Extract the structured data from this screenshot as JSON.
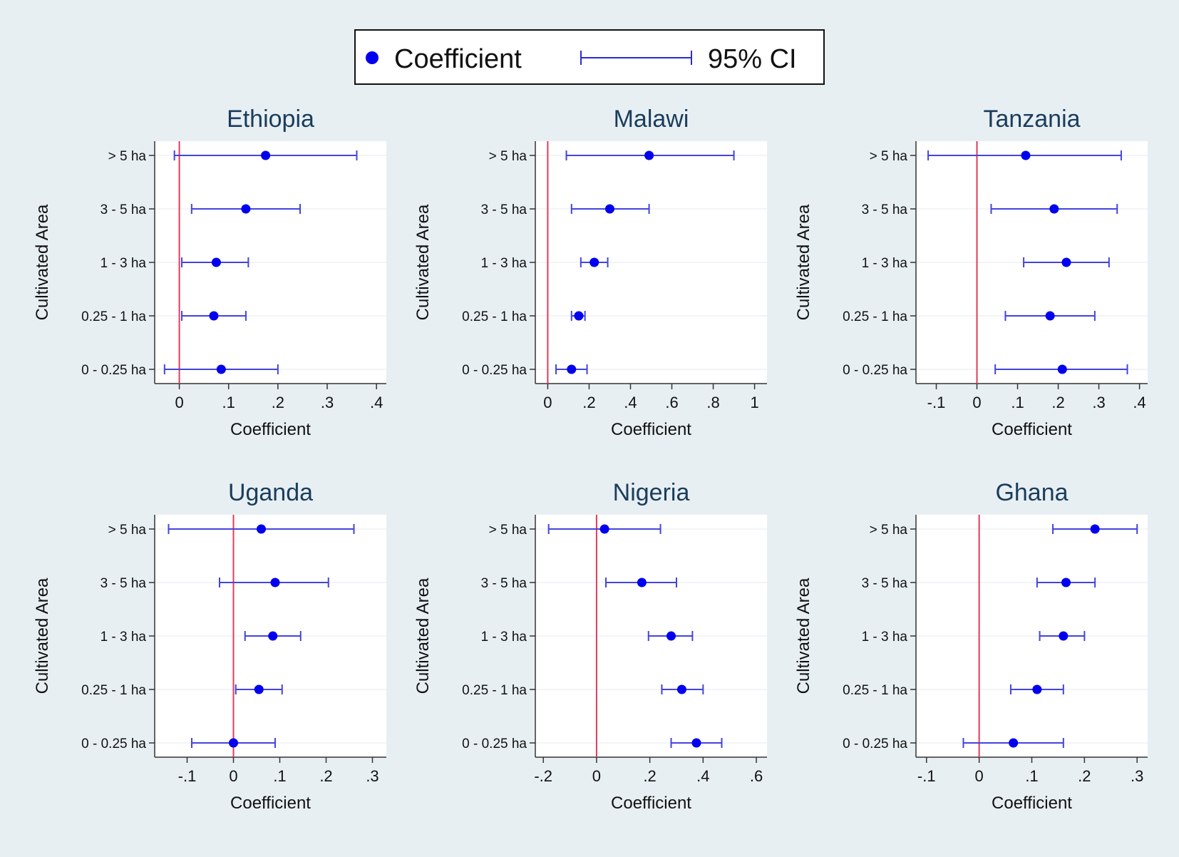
{
  "legend": {
    "coefficient_label": "Coefficient",
    "ci_label": "95% CI",
    "marker_color": "#0000ee",
    "ci_color": "#2b2bd6"
  },
  "colors": {
    "zero_line": "#e23b5a",
    "marker": "#0000ee",
    "ci": "#4444dd"
  },
  "chart_data": [
    {
      "type": "scatter",
      "title": "Ethiopia",
      "xlabel": "Coefficient",
      "ylabel": "Cultivated Area",
      "categories": [
        "> 5 ha",
        "3 - 5 ha",
        "1 - 3 ha",
        "0.25 - 1 ha",
        "0 - 0.25 ha"
      ],
      "series": [
        {
          "values": [
            0.175,
            0.135,
            0.075,
            0.07,
            0.085
          ],
          "ci_low": [
            -0.01,
            0.025,
            0.005,
            0.005,
            -0.03
          ],
          "ci_high": [
            0.36,
            0.245,
            0.14,
            0.135,
            0.2
          ]
        }
      ],
      "xlim": [
        -0.05,
        0.42
      ],
      "xticks": [
        0,
        0.1,
        0.2,
        0.3,
        0.4
      ],
      "xticklabels": [
        "0",
        ".1",
        ".2",
        ".3",
        ".4"
      ],
      "reference_x": 0
    },
    {
      "type": "scatter",
      "title": "Malawi",
      "xlabel": "Coefficient",
      "ylabel": "Cultivated Area",
      "categories": [
        "> 5 ha",
        "3 - 5 ha",
        "1 - 3 ha",
        "0.25 - 1 ha",
        "0 - 0.25 ha"
      ],
      "series": [
        {
          "values": [
            0.49,
            0.3,
            0.225,
            0.15,
            0.115
          ],
          "ci_low": [
            0.09,
            0.115,
            0.16,
            0.115,
            0.04
          ],
          "ci_high": [
            0.9,
            0.49,
            0.29,
            0.18,
            0.19
          ]
        }
      ],
      "xlim": [
        -0.06,
        1.06
      ],
      "xticks": [
        0,
        0.2,
        0.4,
        0.6,
        0.8,
        1
      ],
      "xticklabels": [
        "0",
        ".2",
        ".4",
        ".6",
        ".8",
        "1"
      ],
      "reference_x": 0
    },
    {
      "type": "scatter",
      "title": "Tanzania",
      "xlabel": "Coefficient",
      "ylabel": "Cultivated Area",
      "categories": [
        "> 5 ha",
        "3 - 5 ha",
        "1 - 3 ha",
        "0.25 - 1 ha",
        "0 - 0.25 ha"
      ],
      "series": [
        {
          "values": [
            0.12,
            0.19,
            0.22,
            0.18,
            0.21
          ],
          "ci_low": [
            -0.12,
            0.035,
            0.115,
            0.07,
            0.045
          ],
          "ci_high": [
            0.355,
            0.345,
            0.325,
            0.29,
            0.37
          ]
        }
      ],
      "xlim": [
        -0.15,
        0.42
      ],
      "xticks": [
        -0.1,
        0,
        0.1,
        0.2,
        0.3,
        0.4
      ],
      "xticklabels": [
        "-.1",
        "0",
        ".1",
        ".2",
        ".3",
        ".4"
      ],
      "reference_x": 0
    },
    {
      "type": "scatter",
      "title": "Uganda",
      "xlabel": "Coefficient",
      "ylabel": "Cultivated Area",
      "categories": [
        "> 5 ha",
        "3 - 5 ha",
        "1 - 3 ha",
        "0.25 - 1 ha",
        "0 - 0.25 ha"
      ],
      "series": [
        {
          "values": [
            0.06,
            0.09,
            0.085,
            0.055,
            0.0
          ],
          "ci_low": [
            -0.14,
            -0.03,
            0.025,
            0.005,
            -0.09
          ],
          "ci_high": [
            0.26,
            0.205,
            0.145,
            0.105,
            0.09
          ]
        }
      ],
      "xlim": [
        -0.17,
        0.33
      ],
      "xticks": [
        -0.1,
        0,
        0.1,
        0.2,
        0.3
      ],
      "xticklabels": [
        "-.1",
        "0",
        ".1",
        ".2",
        ".3"
      ],
      "reference_x": 0
    },
    {
      "type": "scatter",
      "title": "Nigeria",
      "xlabel": "Coefficient",
      "ylabel": "Cultivated Area",
      "categories": [
        "> 5 ha",
        "3 - 5 ha",
        "1 - 3 ha",
        "0.25 - 1 ha",
        "0 - 0.25 ha"
      ],
      "series": [
        {
          "values": [
            0.03,
            0.17,
            0.28,
            0.32,
            0.375
          ],
          "ci_low": [
            -0.18,
            0.035,
            0.195,
            0.245,
            0.28
          ],
          "ci_high": [
            0.24,
            0.3,
            0.36,
            0.4,
            0.47
          ]
        }
      ],
      "xlim": [
        -0.23,
        0.64
      ],
      "xticks": [
        -0.2,
        0,
        0.2,
        0.4,
        0.6
      ],
      "xticklabels": [
        "-.2",
        "0",
        ".2",
        ".4",
        ".6"
      ],
      "reference_x": 0
    },
    {
      "type": "scatter",
      "title": "Ghana",
      "xlabel": "Coefficient",
      "ylabel": "Cultivated Area",
      "categories": [
        "> 5 ha",
        "3 - 5 ha",
        "1 - 3 ha",
        "0.25 - 1 ha",
        "0 - 0.25 ha"
      ],
      "series": [
        {
          "values": [
            0.22,
            0.165,
            0.16,
            0.11,
            0.065
          ],
          "ci_low": [
            0.14,
            0.11,
            0.115,
            0.06,
            -0.03
          ],
          "ci_high": [
            0.3,
            0.22,
            0.2,
            0.16,
            0.16
          ]
        }
      ],
      "xlim": [
        -0.12,
        0.32
      ],
      "xticks": [
        -0.1,
        0,
        0.1,
        0.2,
        0.3
      ],
      "xticklabels": [
        "-.1",
        "0",
        ".1",
        ".2",
        ".3"
      ],
      "reference_x": 0
    }
  ]
}
